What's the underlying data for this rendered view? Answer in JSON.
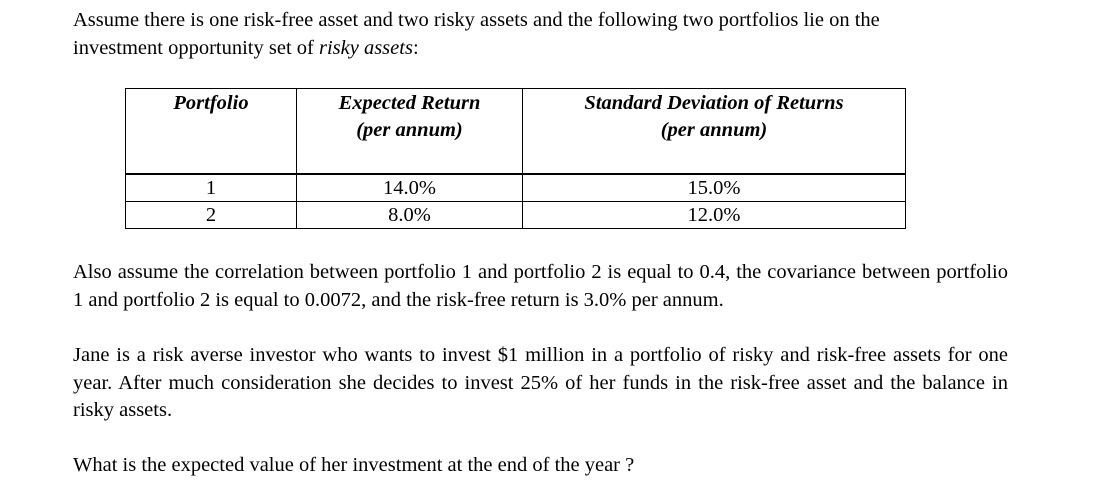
{
  "intro": {
    "text_line1": "Assume there is one risk-free asset and two risky assets and the following two portfolios lie on the",
    "text_line2_prefix": "investment opportunity set of ",
    "text_line2_emph": "risky assets",
    "text_line2_suffix": ":"
  },
  "table": {
    "headers": {
      "portfolio": "Portfolio",
      "expected_return_line1": "Expected Return",
      "expected_return_line2": "(per annum)",
      "std_dev_line1": "Standard Deviation of Returns",
      "std_dev_line2": "(per annum)"
    },
    "rows": [
      {
        "portfolio": "1",
        "expected_return": "14.0%",
        "std_dev": "15.0%"
      },
      {
        "portfolio": "2",
        "expected_return": "8.0%",
        "std_dev": "12.0%"
      }
    ]
  },
  "paragraph2": "Also assume the correlation between portfolio 1 and portfolio 2 is equal to 0.4, the covariance between portfolio 1 and portfolio 2 is equal to 0.0072, and the risk-free return is 3.0% per annum.",
  "paragraph3": "Jane is a risk averse investor who wants to invest $1 million in a portfolio of risky and risk-free assets for one year.  After much consideration she decides to invest 25% of her funds in the risk-free asset and the balance in risky assets.",
  "question": "What is the expected value of her investment at the end of the year ?"
}
